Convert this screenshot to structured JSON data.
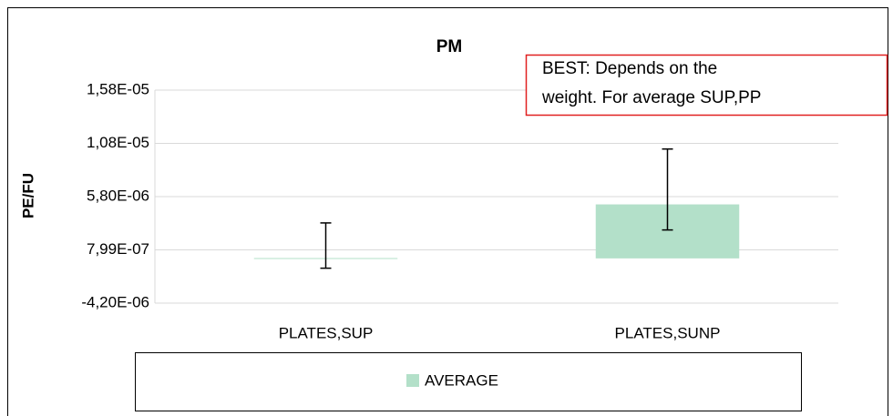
{
  "chart_data": {
    "type": "bar",
    "title": "PM",
    "y_label": "PE/FU",
    "annotation": "BEST: Depends on the weight. For average SUP,PP",
    "categories": [
      "PLATES,SUP",
      "PLATES,SUNP"
    ],
    "series": [
      {
        "name": "AVERAGE",
        "color": "#b3e0c9",
        "values": [
          3e-08,
          5.07e-06
        ],
        "error_plus": [
          3.3e-06,
          5.2e-06
        ],
        "error_minus": [
          9.5e-07,
          2.4e-06
        ]
      }
    ],
    "ylim": [
      -4.2e-06,
      1.58e-05
    ],
    "yticks": [
      {
        "value": -4.2e-06,
        "label": "-4,20E-06"
      },
      {
        "value": 7.99e-07,
        "label": "7,99E-07"
      },
      {
        "value": 5.8e-06,
        "label": "5,80E-06"
      },
      {
        "value": 1.08e-05,
        "label": "1,08E-05"
      },
      {
        "value": 1.58e-05,
        "label": "1,58E-05"
      }
    ],
    "grid": true,
    "legend": "bottom"
  }
}
